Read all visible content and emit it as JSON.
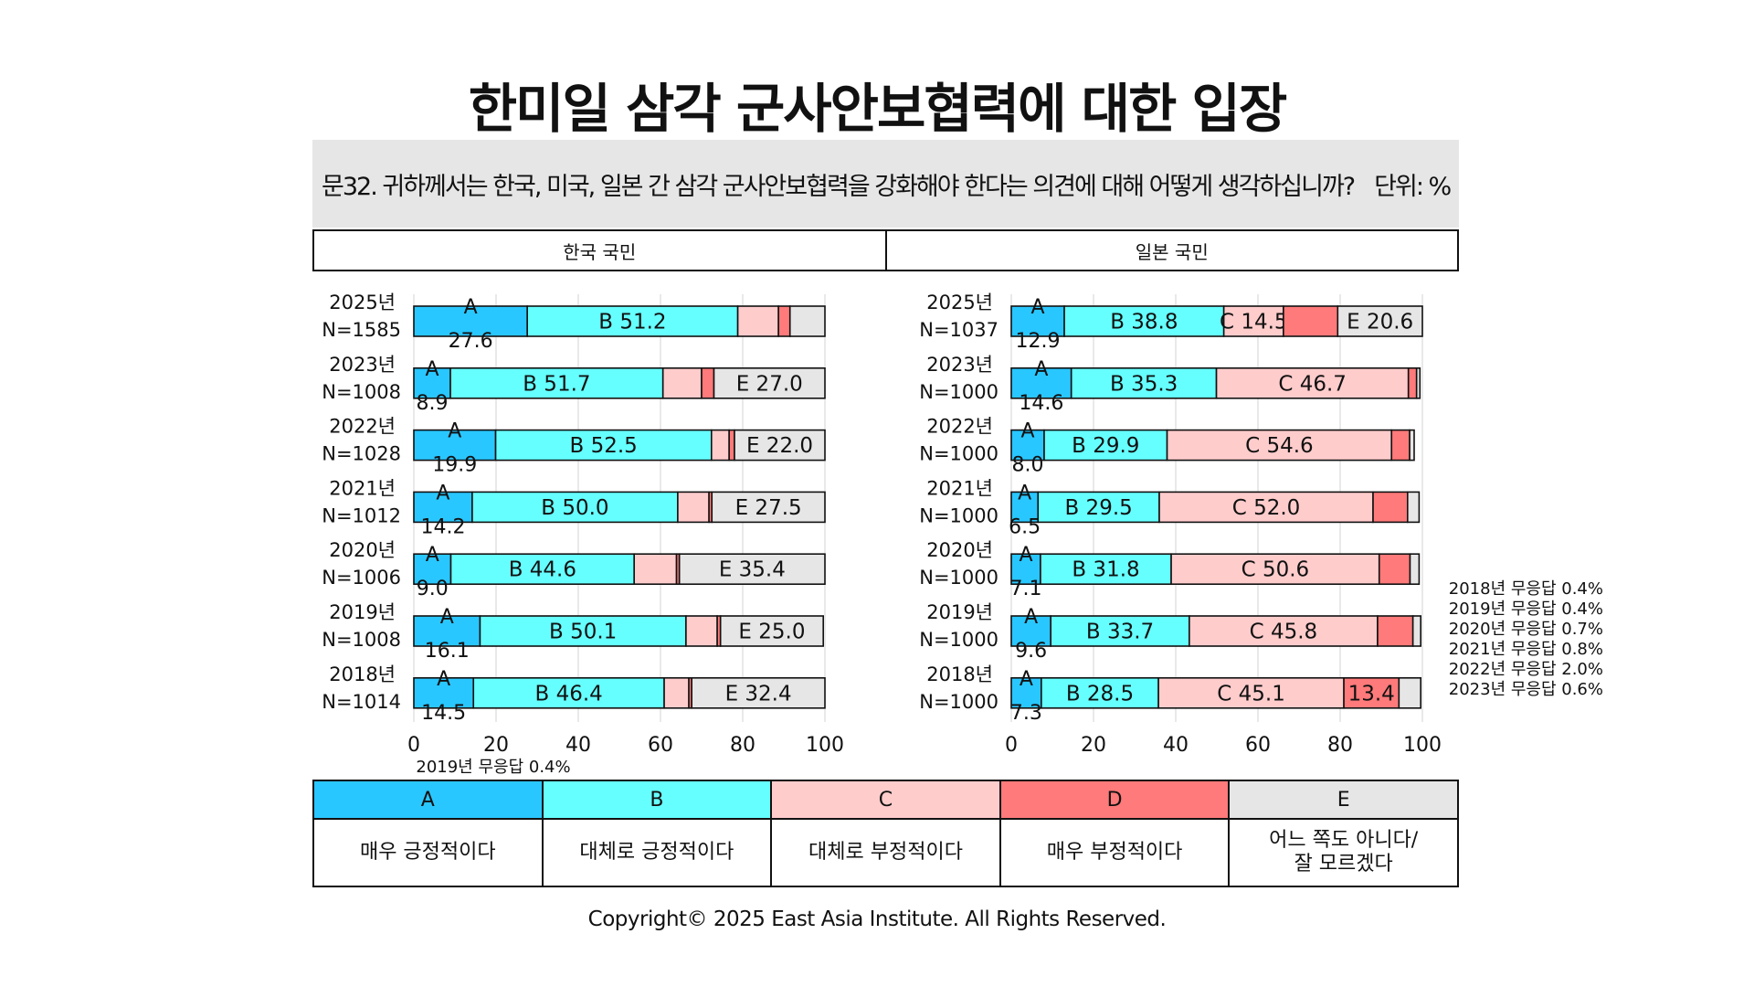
{
  "title": "한미일 삼각 군사안보협력에 대한 입장",
  "question": "문32. 귀하께서는 한국, 미국, 일본 간 삼각 군사안보협력을 강화해야 한다는 의견에 대해 어떻게 생각하십니까?",
  "unit_label": "단위: %",
  "panel_headers": [
    "한국 국민",
    "일본 국민"
  ],
  "copyright": "Copyright© 2025 East Asia Institute. All Rights Reserved.",
  "colors": {
    "A": "#29c7ff",
    "B": "#66ffff",
    "C": "#ffcccc",
    "D": "#ff7a7a",
    "E": "#e6e6e6"
  },
  "legend": {
    "codes": [
      "A",
      "B",
      "C",
      "D",
      "E"
    ],
    "descriptions": [
      "매우 긍정적이다",
      "대체로 긍정적이다",
      "대체로 부정적이다",
      "매우 부정적이다",
      "어느 쪽도 아니다/\n잘 모르겠다"
    ]
  },
  "chart_data": [
    {
      "type": "bar",
      "stacked": true,
      "orientation": "horizontal",
      "panel": "한국 국민",
      "xlim": [
        0,
        100
      ],
      "xticks": [
        "0",
        "20",
        "40",
        "60",
        "80",
        "100"
      ],
      "categories": [
        "2025년",
        "2023년",
        "2022년",
        "2021년",
        "2020년",
        "2019년",
        "2018년"
      ],
      "sample_sizes": [
        "N=1585",
        "N=1008",
        "N=1028",
        "N=1012",
        "N=1006",
        "N=1008",
        "N=1014"
      ],
      "series": [
        {
          "name": "A",
          "values": [
            27.6,
            8.9,
            19.9,
            14.2,
            9.0,
            16.1,
            14.5
          ]
        },
        {
          "name": "B",
          "values": [
            51.2,
            51.7,
            52.5,
            50.0,
            44.6,
            50.1,
            46.4
          ]
        },
        {
          "name": "C",
          "values": [
            9.9,
            9.4,
            4.3,
            7.6,
            10.3,
            7.6,
            6.0
          ]
        },
        {
          "name": "D",
          "values": [
            2.8,
            3.0,
            1.3,
            0.7,
            0.7,
            0.8,
            0.7
          ]
        },
        {
          "name": "E",
          "values": [
            8.5,
            27.0,
            22.0,
            27.5,
            35.4,
            25.0,
            32.4
          ]
        }
      ],
      "note": "2019년 무응답 0.4%"
    },
    {
      "type": "bar",
      "stacked": true,
      "orientation": "horizontal",
      "panel": "일본 국민",
      "xlim": [
        0,
        100
      ],
      "xticks": [
        "0",
        "20",
        "40",
        "60",
        "80",
        "100"
      ],
      "categories": [
        "2025년",
        "2023년",
        "2022년",
        "2021년",
        "2020년",
        "2019년",
        "2018년"
      ],
      "sample_sizes": [
        "N=1037",
        "N=1000",
        "N=1000",
        "N=1000",
        "N=1000",
        "N=1000",
        "N=1000"
      ],
      "series": [
        {
          "name": "A",
          "values": [
            12.9,
            14.6,
            8.0,
            6.5,
            7.1,
            9.6,
            7.3
          ]
        },
        {
          "name": "B",
          "values": [
            38.8,
            35.3,
            29.9,
            29.5,
            31.8,
            33.7,
            28.5
          ]
        },
        {
          "name": "C",
          "values": [
            14.5,
            46.7,
            54.6,
            52.0,
            50.6,
            45.8,
            45.1
          ]
        },
        {
          "name": "D",
          "values": [
            13.2,
            2.0,
            4.4,
            8.4,
            7.5,
            8.6,
            13.4
          ]
        },
        {
          "name": "E",
          "values": [
            20.6,
            0.8,
            1.1,
            2.8,
            2.2,
            1.9,
            5.3
          ]
        }
      ],
      "notes": [
        "2018년 무응답 0.4%",
        "2019년 무응답 0.4%",
        "2020년 무응답 0.7%",
        "2021년 무응답 0.8%",
        "2022년 무응답 2.0%",
        "2023년 무응답 0.6%"
      ]
    }
  ]
}
